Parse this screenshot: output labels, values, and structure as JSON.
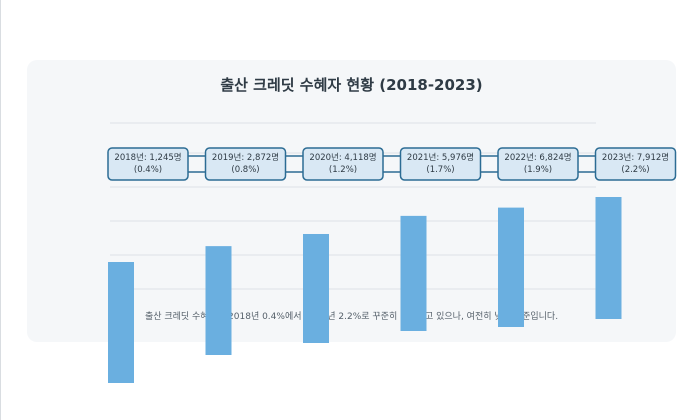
{
  "title": "출산 크레딧 수혜자 현황 (2018-2023)",
  "caption": "출산 크레딧 수혜율은 2018년 0.4%에서 2023년 2.2%로 꾸준히 증가하고 있으나, 여전히 낮은 수준입니다.",
  "colors": {
    "bar": "#6aafe0",
    "label_border": "#2c6c94",
    "label_fill": "#d9e8f4"
  },
  "chart_data": {
    "type": "bar",
    "title": "출산 크레딧 수혜자 현황 (2018-2023)",
    "categories": [
      "2018년",
      "2019년",
      "2020년",
      "2021년",
      "2022년",
      "2023년"
    ],
    "series": [
      {
        "values": [
          1245,
          2872,
          4118,
          5976,
          6824,
          7912
        ]
      }
    ],
    "rates": [
      "0.4%",
      "0.8%",
      "1.2%",
      "1.7%",
      "1.9%",
      "2.2%"
    ],
    "labels": [
      [
        "2018년: 1,245명",
        "(0.4%)"
      ],
      [
        "2019년: 2,872명",
        "(0.8%)"
      ],
      [
        "2020년: 4,118명",
        "(1.2%)"
      ],
      [
        "2021년: 5,976명",
        "(1.7%)"
      ],
      [
        "2022년: 6,824명",
        "(1.9%)"
      ],
      [
        "2023년: 7,912명",
        "(2.2%)"
      ]
    ],
    "grid": true,
    "legend": "none"
  }
}
